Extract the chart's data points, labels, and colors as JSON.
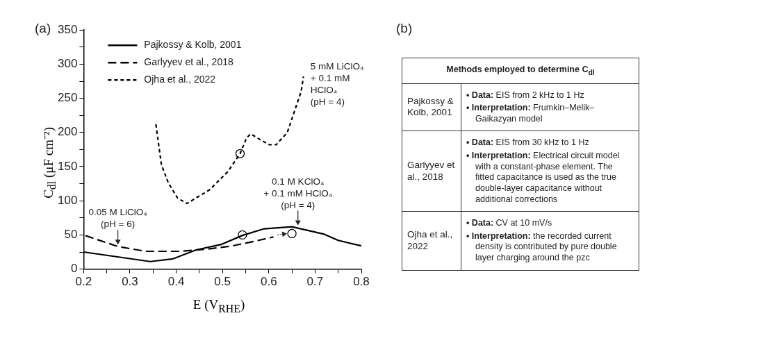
{
  "chart_data": [
    {
      "type": "line",
      "title": "(a)",
      "xlabel": "E (V$_{RHE}$)",
      "ylabel": "C$_{dl}$ (μF cm⁻²)",
      "xlim": [
        0.2,
        0.8
      ],
      "xticks": [
        0.2,
        {
          "value": 0.25,
          "label": null
        },
        0.3,
        {
          "value": 0.35,
          "label": null
        },
        0.4,
        {
          "value": 0.45,
          "label": null
        },
        0.5,
        {
          "value": 0.55,
          "label": null
        },
        0.6,
        {
          "value": 0.65,
          "label": null
        },
        0.7,
        {
          "value": 0.75,
          "label": null
        },
        0.8
      ],
      "ylim": [
        0,
        350
      ],
      "yticks": [
        0,
        {
          "value": 25,
          "label": null
        },
        50,
        {
          "value": 75,
          "label": null
        },
        100,
        {
          "value": 125,
          "label": null
        },
        150,
        {
          "value": 175,
          "label": null
        },
        200,
        {
          "value": 225,
          "label": null
        },
        250,
        {
          "value": 275,
          "label": null
        },
        300,
        {
          "value": 325,
          "label": null
        },
        350
      ],
      "grid": false,
      "legend": "top left",
      "series": [
        {
          "name": "Pajkossy & Kolb, 2001",
          "color": "#000000",
          "line_style": "solid",
          "x": [
            0.2,
            0.344,
            0.393,
            0.443,
            0.497,
            0.542,
            0.59,
            0.65,
            0.72,
            0.75,
            0.8
          ],
          "values": [
            25,
            11,
            15,
            28,
            36,
            49,
            59,
            62,
            51,
            42,
            34
          ]
        },
        {
          "name": "Garlyyev et al., 2018",
          "color": "#000000",
          "line_style": "dashed",
          "x": [
            0.204,
            0.274,
            0.334,
            0.408,
            0.463,
            0.522,
            0.571,
            0.61
          ],
          "values": [
            49,
            33,
            26,
            26,
            29,
            34,
            41,
            47
          ]
        },
        {
          "name": "Ojha et al., 2022",
          "color": "#000000",
          "line_style": "dotted",
          "x": [
            0.356,
            0.368,
            0.383,
            0.403,
            0.423,
            0.472,
            0.512,
            0.538,
            0.552,
            0.561,
            0.58,
            0.601,
            0.616,
            0.64,
            0.655,
            0.67,
            0.675
          ],
          "values": [
            212,
            153,
            126,
            104,
            96,
            116,
            143,
            169,
            192,
            198,
            190,
            182,
            182,
            200,
            230,
            260,
            282
          ]
        },
        {
          "type": "scatter",
          "marker": "circle",
          "color": "#000000",
          "x": [
            0.538,
            0.543,
            0.65
          ],
          "values": [
            169,
            50,
            52
          ]
        }
      ],
      "annotations": [
        {
          "text": "0.05 M LiClO₄\n(pH = 6)",
          "x": 0.274,
          "y": 33
        },
        {
          "text": "0.1 M KClO₄\n+ 0.1 mM HClO₄\n(pH = 4)",
          "x": 0.663,
          "y": 61
        },
        {
          "text": "5 mM LiClO₄\n+ 0.1 mM\nHClO₄\n(pH = 4)",
          "x": 0.675,
          "y": 282
        }
      ]
    },
    {
      "type": "other",
      "title": "(b)",
      "subtitle": "Methods employed to determine C$_{dl}$",
      "annotations": [
        "Pajkossy & Kolb, 2001",
        "• Data: EIS from 2 kHz to 1 Hz",
        "• Interpretation: Frumkin–Melik–Gaikazyan model",
        "Garlyyev et al., 2018",
        "• Data: EIS from 30 kHz to 1 Hz",
        "• Interpretation: Electrical circuit model with a constant-phase element. The fitted capacitance is used as the true double-layer capacitance without additional corrections",
        "Ojha et al., 2022",
        "• Data: CV at 10 mV/s",
        "• Interpretation: the recorded current density is contributed by pure double layer charging around the pzc"
      ]
    }
  ]
}
